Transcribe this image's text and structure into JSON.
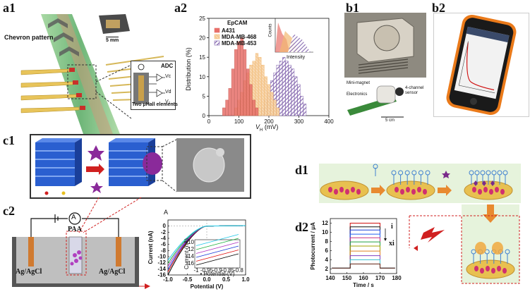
{
  "panel_labels": {
    "a1": "a1",
    "a2": "a2",
    "b1": "b1",
    "b2": "b2",
    "c1": "c1",
    "c2": "c2",
    "d1": "d1",
    "d2": "d2"
  },
  "a1": {
    "chevron_label": "Chevron pattern",
    "scale_bar": "5 mm",
    "adc_label": "ADC",
    "vc_label": "Vc",
    "vd_label": "Vd",
    "vb_label": "V₂",
    "two_hall_label": "Two μHall elements"
  },
  "a2": {
    "legend_title": "EpCAM",
    "inset_ylabel": "Counts",
    "inset_xlabel": "Intensity",
    "ylabel": "Distribution (%)",
    "xlabel": "V",
    "xlabel_sub": "H",
    "xlabel_unit": " (mV)",
    "colors": {
      "A431": "#e8706a",
      "MDA-MB-468": "#f2b870",
      "MDA-MB-453": "#7a5aa8"
    }
  },
  "b1": {
    "mini_magnet": "Mini-magnet",
    "electronics": "Electronics",
    "sensor": "4-channel sensor",
    "scale": "5 cm"
  },
  "c2": {
    "ammeter": "A",
    "paa": "PAA",
    "electrode_left": "Ag/AgCl",
    "electrode_right": "Ag/AgCl",
    "chart_corner": "A"
  },
  "d2": {
    "label_i": "i",
    "label_xi": "xi"
  },
  "chart_data": [
    {
      "type": "bar",
      "title": "",
      "xlabel": "V_H (mV)",
      "ylabel": "Distribution (%)",
      "xlim": [
        0,
        400
      ],
      "ylim": [
        0,
        25
      ],
      "xticks": [
        0,
        100,
        200,
        300,
        400
      ],
      "yticks": [
        0,
        5,
        10,
        15,
        20,
        25
      ],
      "legend_title": "EpCAM",
      "legend_position": "top-left",
      "series": [
        {
          "name": "A431",
          "x": [
            50,
            60,
            70,
            80,
            90,
            100,
            110,
            120,
            130,
            140,
            150,
            160
          ],
          "values": [
            2,
            4,
            7,
            12,
            17,
            19,
            20,
            17,
            12,
            8,
            4,
            2
          ]
        },
        {
          "name": "MDA-MB-468",
          "x": [
            90,
            100,
            110,
            120,
            130,
            140,
            150,
            160,
            170,
            180,
            190,
            200,
            210,
            220,
            230
          ],
          "values": [
            2,
            4,
            6,
            9,
            11,
            13,
            14,
            16,
            15,
            13,
            10,
            8,
            6,
            4,
            2
          ]
        },
        {
          "name": "MDA-MB-453",
          "x": [
            180,
            190,
            200,
            210,
            220,
            230,
            240,
            250,
            260,
            270,
            280,
            290,
            300,
            310,
            320
          ],
          "values": [
            2,
            4,
            6,
            9,
            11,
            13,
            14,
            15,
            14,
            13,
            12,
            10,
            8,
            5,
            3
          ]
        }
      ]
    },
    {
      "type": "line",
      "title": "",
      "xlabel": "Potential (V)",
      "ylabel": "Current (nA)",
      "xlim": [
        -1.0,
        1.0
      ],
      "ylim": [
        -16,
        2
      ],
      "xticks": [
        -1.0,
        -0.5,
        0.0,
        0.5,
        1.0
      ],
      "yticks": [
        0,
        -2,
        -4,
        -6,
        -8,
        -10,
        -12,
        -14,
        -16
      ],
      "inset": {
        "xlabel": "Potential (V)",
        "ylabel": "Current (nA)",
        "xticks": [
          -1.0,
          -0.95,
          -0.9,
          -0.85,
          -0.8
        ],
        "yticks": [
          -10,
          -12,
          -14,
          -16
        ]
      },
      "series": [
        {
          "color": "#000000",
          "values_at_minus1": -16
        },
        {
          "color": "#e01010",
          "values_at_minus1": -15
        },
        {
          "color": "#1a3ad8",
          "values_at_minus1": -14.2
        },
        {
          "color": "#b030c0",
          "values_at_minus1": -13.2
        },
        {
          "color": "#20b040",
          "values_at_minus1": -12.2
        },
        {
          "color": "#20c8e8",
          "values_at_minus1": -11.2
        }
      ]
    },
    {
      "type": "line",
      "title": "",
      "xlabel": "Time / s",
      "ylabel": "Photocurrent / μA",
      "xlim": [
        140,
        180
      ],
      "ylim": [
        1,
        13
      ],
      "xticks": [
        140,
        150,
        160,
        170,
        180
      ],
      "yticks": [
        2,
        4,
        6,
        8,
        10,
        12
      ],
      "on_time": [
        152,
        170
      ],
      "baseline": 2.2,
      "plateaus": [
        12.0,
        11.2,
        10.5,
        9.6,
        8.8,
        7.9,
        7.0,
        5.9,
        4.9,
        4.0,
        3.1
      ],
      "colors": [
        "#d01010",
        "#101010",
        "#1840d8",
        "#2060f0",
        "#c83080",
        "#20a040",
        "#a0a000",
        "#e08020",
        "#8040c0",
        "#40c0d0",
        "#602010"
      ]
    }
  ]
}
